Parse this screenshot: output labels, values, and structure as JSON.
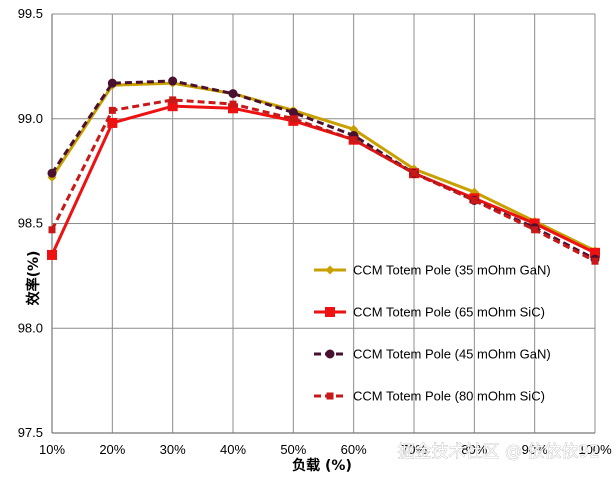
{
  "chart_data": {
    "type": "line",
    "title": "",
    "xlabel": "负载 (%)",
    "ylabel": "效率(%)",
    "categories": [
      "10%",
      "20%",
      "30%",
      "40%",
      "50%",
      "60%",
      "70%",
      "80%",
      "90%",
      "100%"
    ],
    "ylim": [
      97.5,
      99.5
    ],
    "yticks": [
      "97.5",
      "98.0",
      "98.5",
      "99.0",
      "99.5"
    ],
    "grid": true,
    "legend_position": "right",
    "series": [
      {
        "name": "CCM Totem Pole (35 mOhm GaN)",
        "color": "#c8a000",
        "dash": "solid",
        "marker": "diamond",
        "values": [
          98.72,
          99.16,
          99.17,
          99.12,
          99.04,
          98.95,
          98.76,
          98.65,
          98.51,
          98.37
        ]
      },
      {
        "name": "CCM Totem Pole (65 mOhm SiC)",
        "color": "#ee1111",
        "dash": "solid",
        "marker": "square",
        "values": [
          98.35,
          98.98,
          99.06,
          99.05,
          98.99,
          98.9,
          98.74,
          98.62,
          98.5,
          98.36
        ]
      },
      {
        "name": "CCM Totem Pole (45 mOhm GaN)",
        "color": "#4a1030",
        "dash": "dashed",
        "marker": "circle",
        "values": [
          98.74,
          99.17,
          99.18,
          99.12,
          99.03,
          98.92,
          98.74,
          98.61,
          98.48,
          98.33
        ]
      },
      {
        "name": "CCM Totem Pole (80 mOhm SiC)",
        "color": "#c81818",
        "dash": "dashed",
        "marker": "square-small",
        "values": [
          98.47,
          99.04,
          99.09,
          99.07,
          99.0,
          98.9,
          98.74,
          98.61,
          98.47,
          98.32
        ]
      }
    ]
  },
  "watermark": "掘金技术社区 @ 依依依92"
}
